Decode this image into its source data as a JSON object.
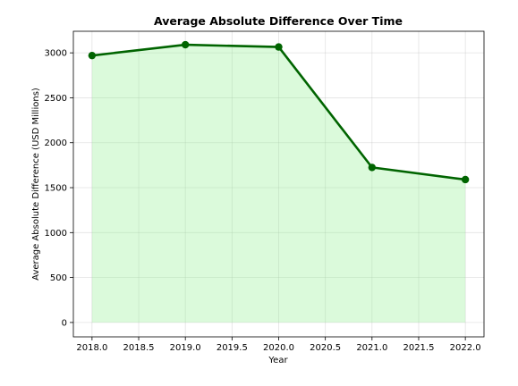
{
  "chart_data": {
    "type": "area",
    "title": "Average Absolute Difference Over Time",
    "xlabel": "Year",
    "ylabel": "Average Absolute Difference (USD Millions)",
    "x": [
      2018,
      2019,
      2020,
      2021,
      2022
    ],
    "values": [
      2970,
      3090,
      3065,
      1725,
      1590
    ],
    "xlim": [
      2017.8,
      2022.2
    ],
    "ylim": [
      -160,
      3240
    ],
    "xticks": [
      2018.0,
      2018.5,
      2019.0,
      2019.5,
      2020.0,
      2020.5,
      2021.0,
      2021.5,
      2022.0
    ],
    "xtick_labels": [
      "2018.0",
      "2018.5",
      "2019.0",
      "2019.5",
      "2020.0",
      "2020.5",
      "2021.0",
      "2021.5",
      "2022.0"
    ],
    "yticks": [
      0,
      500,
      1000,
      1500,
      2000,
      2500,
      3000
    ],
    "ytick_labels": [
      "0",
      "500",
      "1000",
      "1500",
      "2000",
      "2500",
      "3000"
    ],
    "grid": true,
    "colors": {
      "line": "#006400",
      "fill": "#90ee90",
      "grid": "#b0b0b0"
    }
  }
}
